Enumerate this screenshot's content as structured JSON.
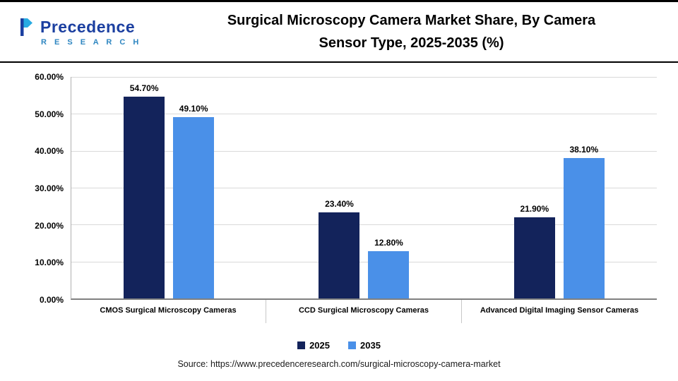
{
  "header": {
    "logo_name": "Precedence",
    "logo_sub": "R E S E A R C H",
    "title_line1": "Surgical Microscopy Camera Market Share, By Camera",
    "title_line2": "Sensor Type, 2025-2035 (%)"
  },
  "chart_data": {
    "type": "bar",
    "categories": [
      "CMOS Surgical Microscopy Cameras",
      "CCD Surgical Microscopy Cameras",
      "Advanced Digital Imaging Sensor Cameras"
    ],
    "series": [
      {
        "name": "2025",
        "color": "#13235b",
        "values": [
          54.7,
          23.4,
          21.9
        ]
      },
      {
        "name": "2035",
        "color": "#4a90e8",
        "values": [
          49.1,
          12.8,
          38.1
        ]
      }
    ],
    "value_labels": [
      [
        "54.70%",
        "49.10%"
      ],
      [
        "23.40%",
        "12.80%"
      ],
      [
        "21.90%",
        "38.10%"
      ]
    ],
    "y_ticks": [
      "60.00%",
      "50.00%",
      "40.00%",
      "30.00%",
      "20.00%",
      "10.00%",
      "0.00%"
    ],
    "ylim": [
      0,
      60
    ],
    "grid": true,
    "legend_position": "bottom"
  },
  "footer": {
    "source": "Source: https://www.precedenceresearch.com/surgical-microscopy-camera-market"
  }
}
